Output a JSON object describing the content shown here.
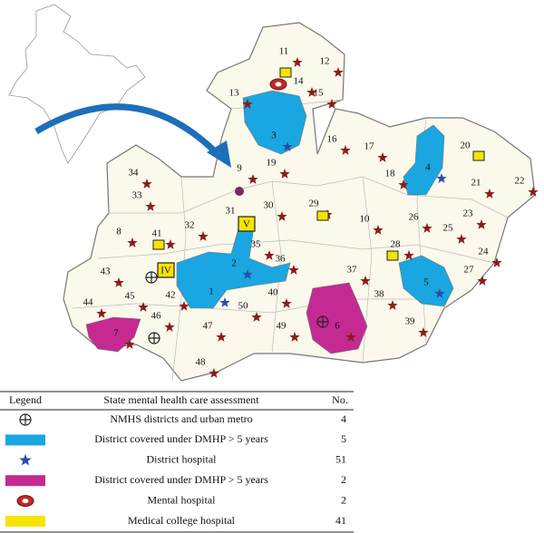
{
  "map": {
    "districts": [
      "1",
      "2",
      "3",
      "4",
      "5",
      "6",
      "7",
      "8",
      "9",
      "10",
      "11",
      "12",
      "13",
      "14",
      "15",
      "16",
      "17",
      "18",
      "19",
      "20",
      "21",
      "22",
      "23",
      "24",
      "25",
      "26",
      "27",
      "28",
      "29",
      "30",
      "31",
      "32",
      "33",
      "34",
      "35",
      "36",
      "37",
      "38",
      "39",
      "40",
      "41",
      "42",
      "43",
      "44",
      "45",
      "46",
      "47",
      "48",
      "49",
      "50"
    ],
    "medical_colleges": [
      "V",
      "IV"
    ]
  },
  "legend": {
    "header": [
      "Legend",
      "State mental health care assessment",
      "No."
    ],
    "rows": [
      {
        "label": "NMHS districts and urban metro",
        "count": 4
      },
      {
        "label": "District covered under DMHP > 5 years",
        "count": 5
      },
      {
        "label": "District hospital",
        "count": 51
      },
      {
        "label": "District covered under DMHP > 5 years",
        "count": 2
      },
      {
        "label": "Mental hospital",
        "count": 2
      },
      {
        "label": "Medical college hospital",
        "count": 41
      }
    ]
  }
}
